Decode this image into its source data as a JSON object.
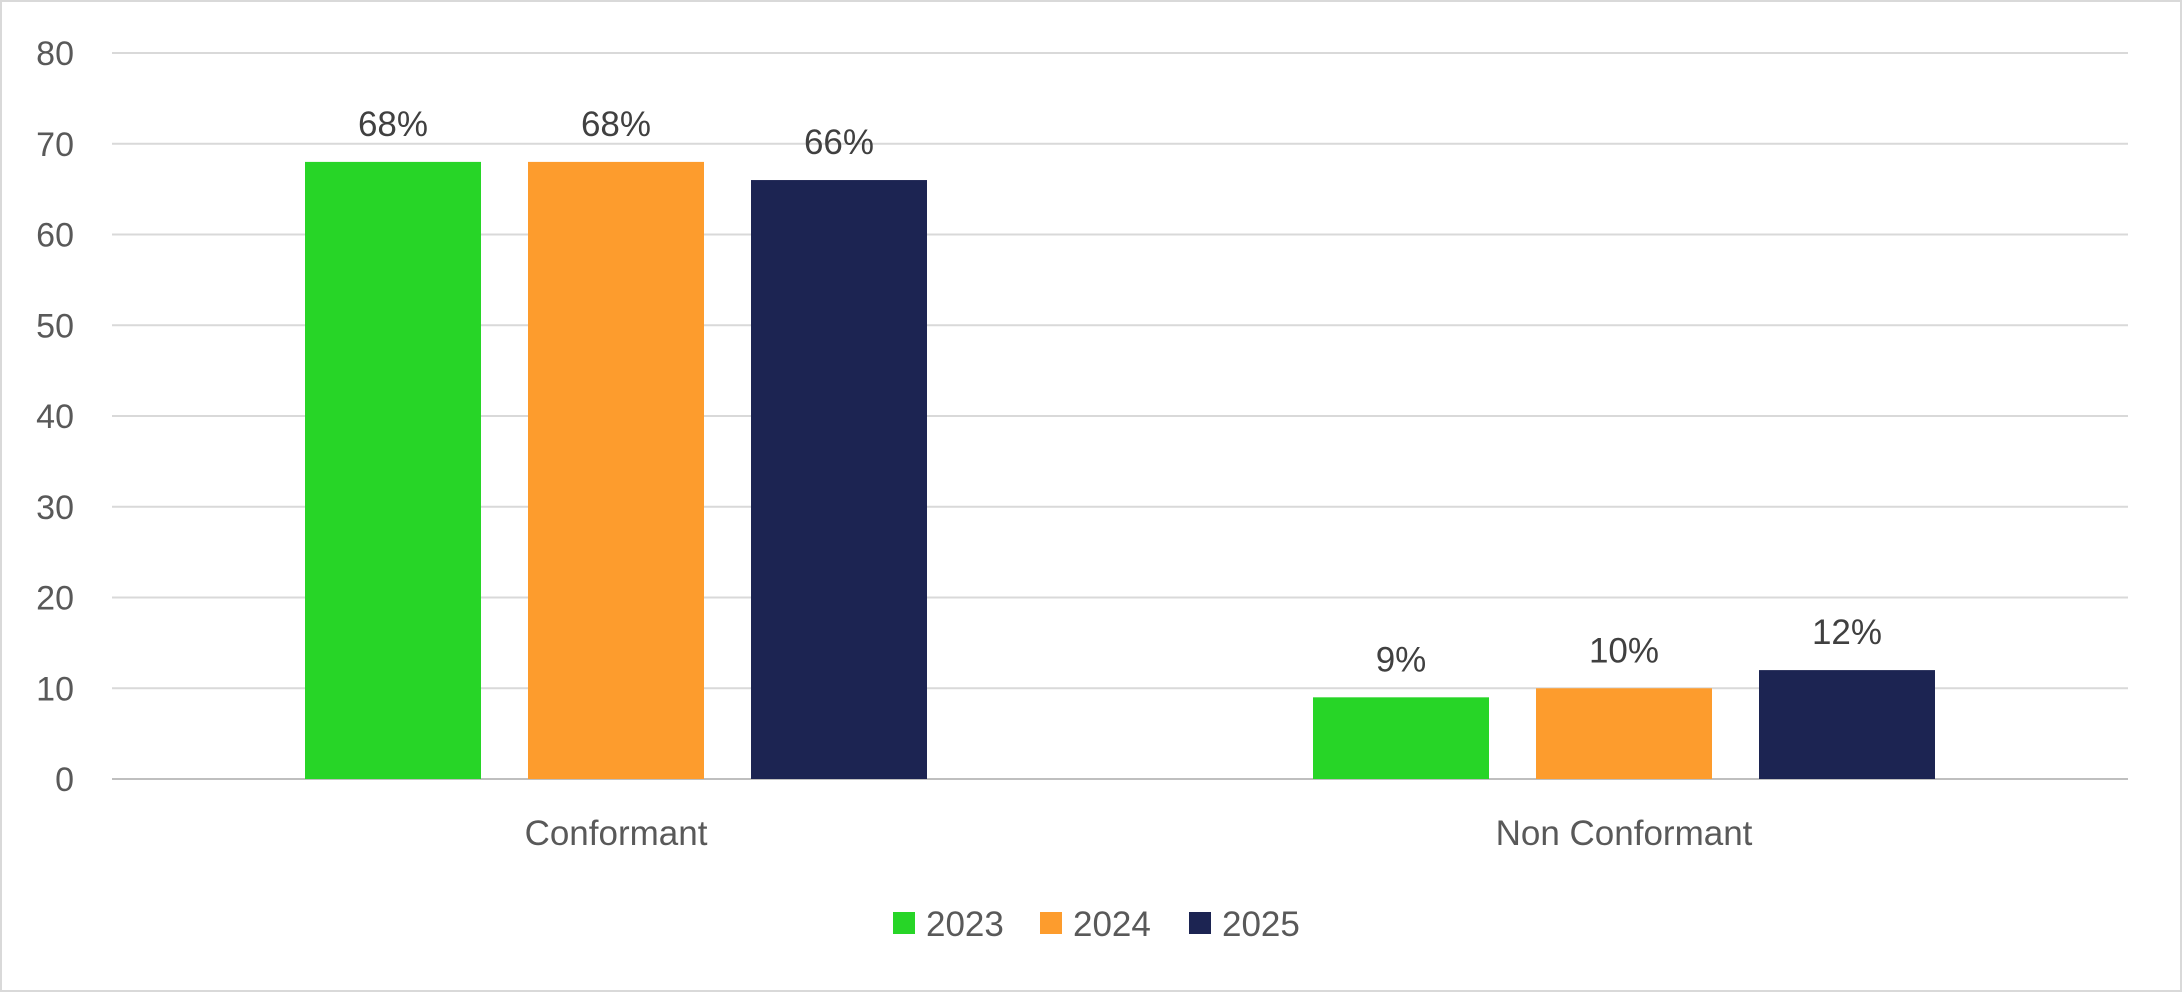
{
  "chart_data": {
    "type": "bar",
    "title": "",
    "xlabel": "",
    "ylabel": "",
    "categories": [
      "Conformant",
      "Non Conformant"
    ],
    "ylim": [
      0,
      80
    ],
    "yticks": [
      0,
      10,
      20,
      30,
      40,
      50,
      60,
      70,
      80
    ],
    "grid": true,
    "legend_position": "bottom",
    "series": [
      {
        "name": "2023",
        "color": "#27d527",
        "values": [
          68,
          9
        ],
        "labels": [
          "68%",
          "9%"
        ]
      },
      {
        "name": "2024",
        "color": "#fd9c2d",
        "values": [
          68,
          10
        ],
        "labels": [
          "68%",
          "10%"
        ]
      },
      {
        "name": "2025",
        "color": "#1c2452",
        "values": [
          66,
          12
        ],
        "labels": [
          "66%",
          "12%"
        ]
      }
    ]
  }
}
